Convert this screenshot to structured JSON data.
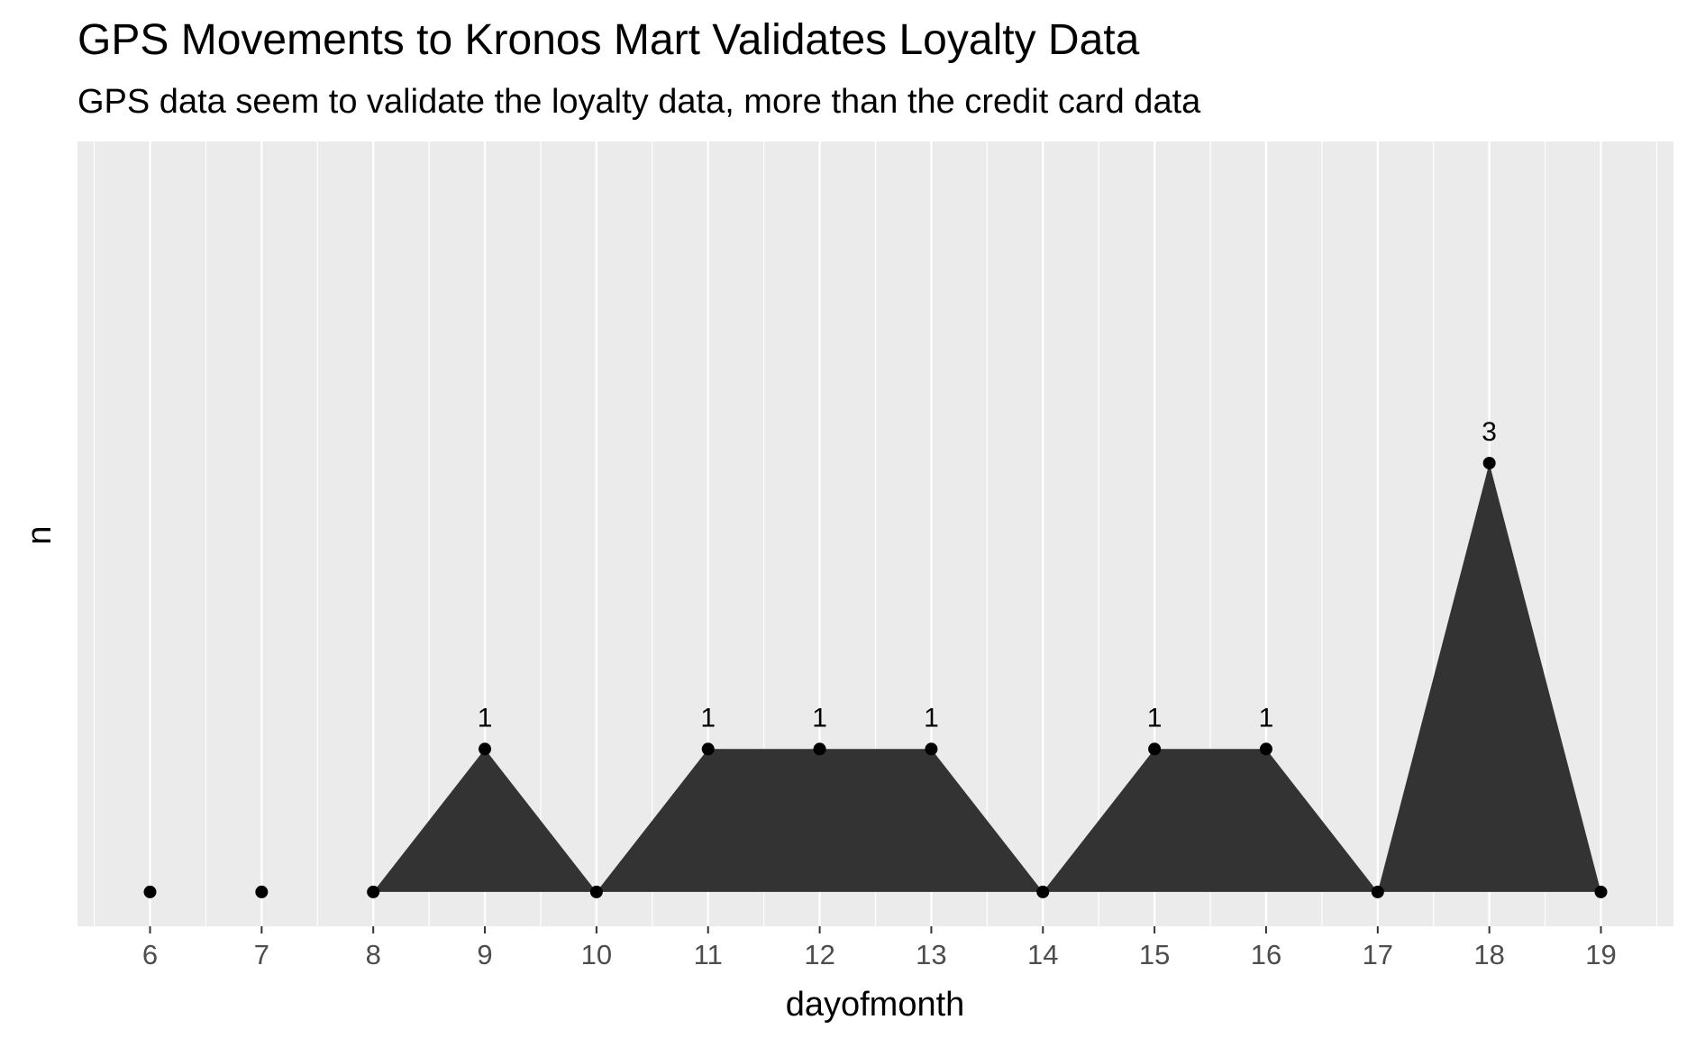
{
  "chart_data": {
    "type": "area",
    "title": "GPS Movements to Kronos Mart Validates Loyalty Data",
    "subtitle": "GPS data seem to validate the loyalty data, more than the credit card data",
    "xlabel": "dayofmonth",
    "ylabel": "n",
    "x": [
      6,
      7,
      8,
      9,
      10,
      11,
      12,
      13,
      14,
      15,
      16,
      17,
      18,
      19
    ],
    "values": [
      0,
      0,
      0,
      1,
      0,
      1,
      1,
      1,
      0,
      1,
      1,
      0,
      3,
      0
    ],
    "data_labels": [
      "",
      "",
      "",
      "1",
      "",
      "1",
      "1",
      "1",
      "",
      "1",
      "1",
      "",
      "3",
      ""
    ],
    "xlim": [
      5.35,
      19.65
    ],
    "ylim": [
      -0.24,
      5.25
    ],
    "grid": true,
    "y_ticks_visible": false,
    "colors": {
      "panel": "#ebebeb",
      "grid": "#ffffff",
      "fill": "#333333",
      "point": "#000000"
    }
  }
}
